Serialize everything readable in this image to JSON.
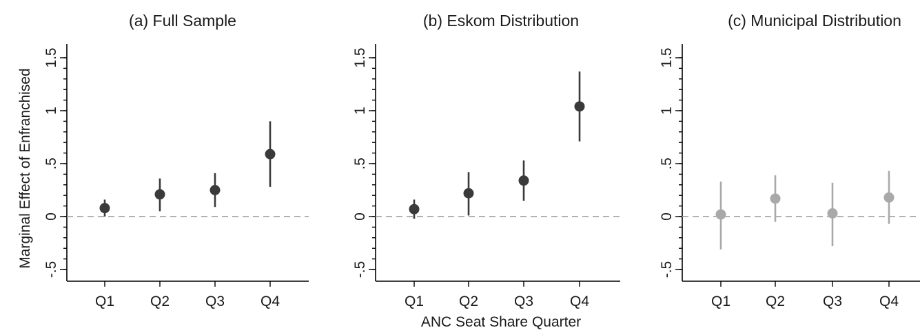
{
  "chart_data": [
    {
      "type": "scatter",
      "title": "(a) Full Sample",
      "ylabel": "Marginal Effect of Enfranchised",
      "xlabel": "",
      "categories": [
        "Q1",
        "Q2",
        "Q3",
        "Q4"
      ],
      "ylim": [
        -0.6,
        1.6
      ],
      "yticks": [
        -0.5,
        0,
        0.5,
        1,
        1.5
      ],
      "ytick_labels": [
        "-.5",
        "0",
        ".5",
        "1",
        "1.5"
      ],
      "reference_line": 0,
      "color": "#3a3a3a",
      "series": [
        {
          "values": [
            0.08,
            0.21,
            0.25,
            0.59
          ],
          "ci_low": [
            0.0,
            0.05,
            0.09,
            0.28
          ],
          "ci_high": [
            0.16,
            0.36,
            0.41,
            0.9
          ]
        }
      ]
    },
    {
      "type": "scatter",
      "title": "(b) Eskom Distribution",
      "ylabel": "",
      "xlabel": "ANC Seat Share Quarter",
      "categories": [
        "Q1",
        "Q2",
        "Q3",
        "Q4"
      ],
      "ylim": [
        -0.6,
        1.6
      ],
      "yticks": [
        -0.5,
        0,
        0.5,
        1,
        1.5
      ],
      "ytick_labels": [
        "-.5",
        "0",
        ".5",
        "1",
        "1.5"
      ],
      "reference_line": 0,
      "color": "#3a3a3a",
      "series": [
        {
          "values": [
            0.07,
            0.22,
            0.34,
            1.04
          ],
          "ci_low": [
            -0.02,
            0.01,
            0.15,
            0.71
          ],
          "ci_high": [
            0.16,
            0.42,
            0.53,
            1.37
          ]
        }
      ]
    },
    {
      "type": "scatter",
      "title": "(c) Municipal Distribution",
      "ylabel": "",
      "xlabel": "",
      "categories": [
        "Q1",
        "Q2",
        "Q3",
        "Q4"
      ],
      "ylim": [
        -0.6,
        1.6
      ],
      "yticks": [
        -0.5,
        0,
        0.5,
        1,
        1.5
      ],
      "ytick_labels": [
        "-.5",
        "0",
        ".5",
        "1",
        "1.5"
      ],
      "reference_line": 0,
      "color": "#a9a9a9",
      "series": [
        {
          "values": [
            0.02,
            0.17,
            0.03,
            0.18
          ],
          "ci_low": [
            -0.31,
            -0.05,
            -0.28,
            -0.07
          ],
          "ci_high": [
            0.33,
            0.39,
            0.32,
            0.43
          ]
        }
      ]
    }
  ]
}
